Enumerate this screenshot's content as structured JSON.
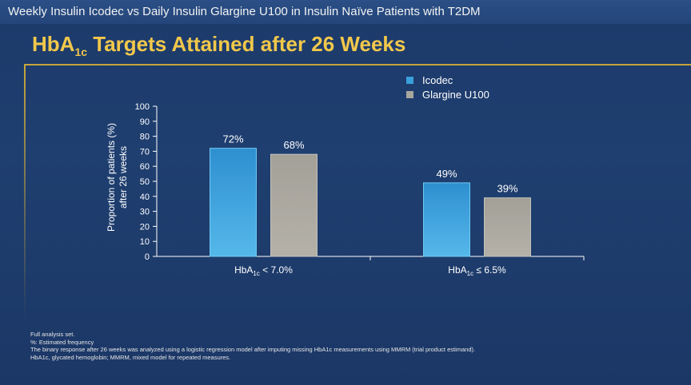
{
  "header": {
    "supertitle": "Weekly Insulin Icodec vs Daily Insulin Glargine U100 in Insulin Naïve Patients with T2DM",
    "title_main": "HbA",
    "title_sub": "1c",
    "title_rest": " Targets Attained after 26 Weeks"
  },
  "colors": {
    "icodec": "#3aa0dc",
    "glargine": "#a9a69e",
    "title": "#f2c84b",
    "axis": "#ffffff"
  },
  "chart_data": {
    "type": "bar",
    "categories": [
      "HbA1c < 7.0%",
      "HbA1c ≤ 6.5%"
    ],
    "series": [
      {
        "name": "Icodec",
        "values": [
          72,
          49
        ],
        "labels": [
          "72%",
          "49%"
        ]
      },
      {
        "name": "Glargine U100",
        "values": [
          68,
          39
        ],
        "labels": [
          "68%",
          "39%"
        ]
      }
    ],
    "ylabel_line1": "Proportion of patients (%)",
    "ylabel_line2": "after 26 weeks",
    "ylim": [
      0,
      100
    ],
    "yticks": [
      0,
      10,
      20,
      30,
      40,
      50,
      60,
      70,
      80,
      90,
      100
    ],
    "legend_position": "top-right",
    "grid": false
  },
  "footnotes": [
    "Full analysis set.",
    "%: Estimated frequency",
    "The binary response after 26 weeks was analyzed using a logistic regression model after imputing missing HbA1c measurements using MMRM (trial product estimand).",
    "HbA1c, glycated hemoglobin; MMRM, mixed model for repeated measures."
  ]
}
